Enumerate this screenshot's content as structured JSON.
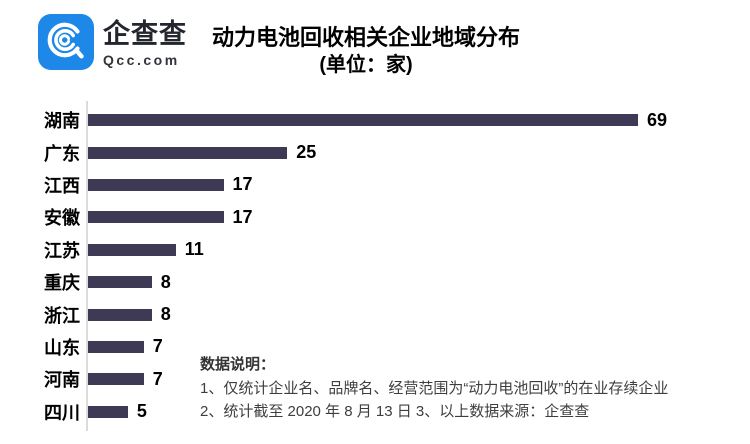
{
  "header": {
    "brand": {
      "name": "企查查",
      "domain": "Qcc.com",
      "logo_color": "#1e88e8",
      "logo_glyph": "qcc-magnifier-icon"
    },
    "title": "动力电池回收相关企业地域分布",
    "subtitle": "(单位：家)"
  },
  "chart_data": {
    "type": "bar",
    "orientation": "horizontal",
    "title": "动力电池回收相关企业地域分布",
    "unit_label": "(单位：家)",
    "categories": [
      "湖南",
      "广东",
      "江西",
      "安徽",
      "江苏",
      "重庆",
      "浙江",
      "山东",
      "河南",
      "四川"
    ],
    "values": [
      69,
      25,
      17,
      17,
      11,
      8,
      8,
      7,
      7,
      5
    ],
    "xlim": [
      0,
      69
    ],
    "bar_color": "#3e3a55",
    "axis_color": "#dcdcdc",
    "value_labels_shown": true,
    "grid": false,
    "legend": false
  },
  "notes": {
    "heading": "数据说明：",
    "items": [
      "1、仅统计企业名、品牌名、经营范围为“动力电池回收”的在业存续企业",
      "2、统计截至 2020 年 8 月 13 日  3、以上数据来源：企查查"
    ]
  }
}
